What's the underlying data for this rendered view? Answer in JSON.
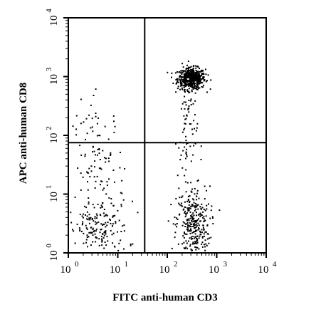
{
  "chart_data": {
    "type": "scatter",
    "title": "",
    "xlabel": "FITC anti-human CD3",
    "ylabel": "APC anti-human CD8",
    "scale": "log",
    "xlim": [
      1,
      10000
    ],
    "ylim": [
      1,
      10000
    ],
    "x_ticks": [
      {
        "base": "10",
        "exp": "0"
      },
      {
        "base": "10",
        "exp": "1"
      },
      {
        "base": "10",
        "exp": "2"
      },
      {
        "base": "10",
        "exp": "3"
      },
      {
        "base": "10",
        "exp": "4"
      }
    ],
    "y_ticks": [
      {
        "base": "10",
        "exp": "0"
      },
      {
        "base": "10",
        "exp": "1"
      },
      {
        "base": "10",
        "exp": "2"
      },
      {
        "base": "10",
        "exp": "3"
      },
      {
        "base": "10",
        "exp": "4"
      }
    ],
    "quadrant_gate": {
      "x": 35,
      "y": 75
    },
    "point_color": "#000000",
    "populations": [
      {
        "x_center": 300,
        "y_center": 950,
        "x_spread": 0.14,
        "y_spread": 0.09,
        "count": 520
      },
      {
        "x_center": 320,
        "y_center": 3,
        "x_spread": 0.17,
        "y_spread": 0.33,
        "count": 330
      },
      {
        "x_center": 4,
        "y_center": 2.5,
        "x_spread": 0.3,
        "y_spread": 0.25,
        "count": 170
      },
      {
        "x_center": 4,
        "y_center": 30,
        "x_spread": 0.26,
        "y_spread": 0.55,
        "count": 120
      },
      {
        "x_center": 250,
        "y_center": 100,
        "x_spread": 0.1,
        "y_spread": 0.55,
        "count": 80
      }
    ]
  }
}
